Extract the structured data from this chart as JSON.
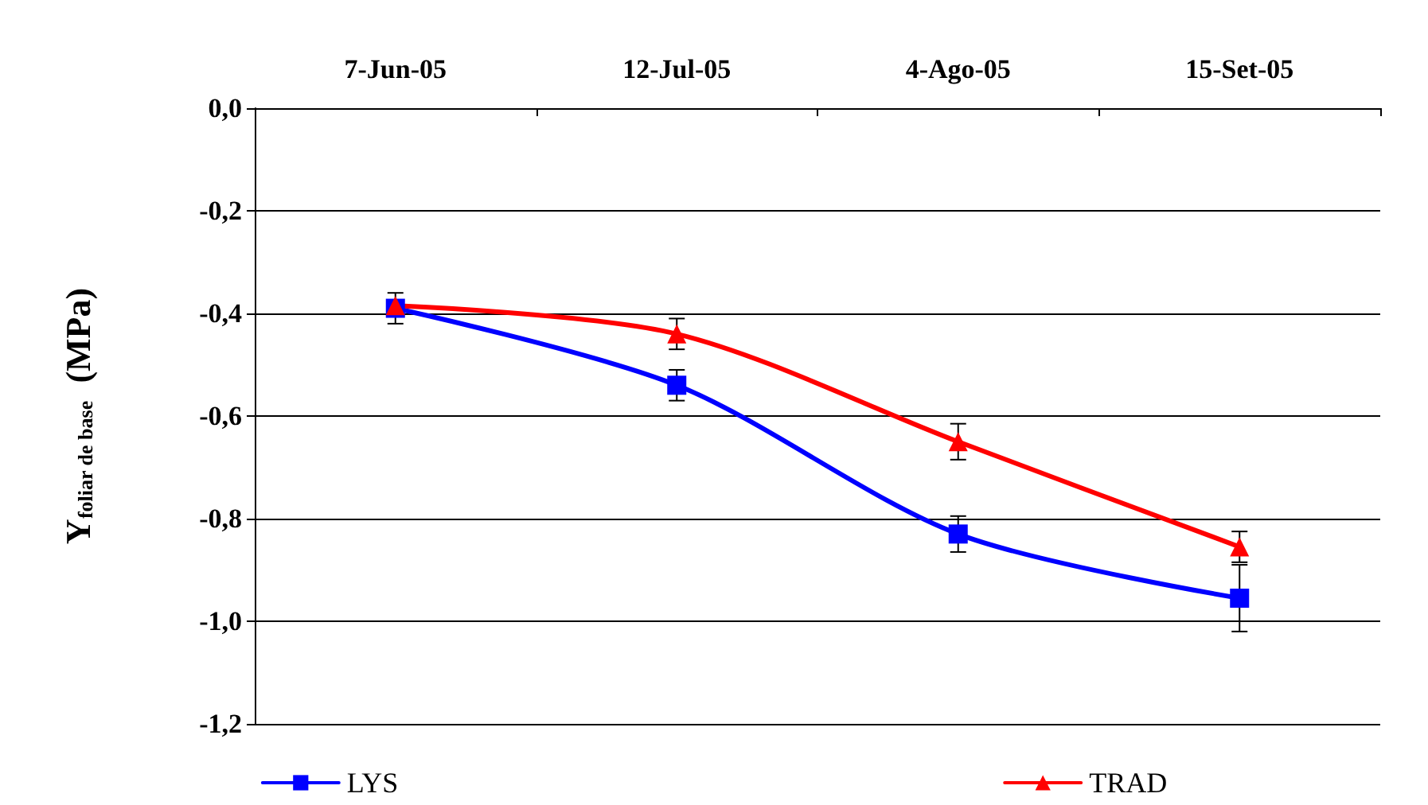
{
  "chart_data": {
    "type": "line",
    "ylabel": "Y$_{foliar de base}$  (MPa)",
    "categories": [
      "7-Jun-05",
      "12-Jul-05",
      "4-Ago-05",
      "15-Set-05"
    ],
    "series": [
      {
        "name": "LYS",
        "color": "#0000ff",
        "marker": "square",
        "values": [
          -0.39,
          -0.54,
          -0.83,
          -0.955
        ],
        "errors": [
          0.03,
          0.03,
          0.035,
          0.065
        ]
      },
      {
        "name": "TRAD",
        "color": "#ff0000",
        "marker": "triangle",
        "values": [
          -0.385,
          -0.44,
          -0.65,
          -0.855
        ],
        "errors": [
          null,
          0.03,
          0.035,
          0.03
        ]
      }
    ],
    "ylim": [
      -1.2,
      0
    ],
    "yticks": [
      {
        "value": -1.2,
        "label": "-1,2"
      },
      {
        "value": -1.0,
        "label": "-1,0"
      },
      {
        "value": -0.8,
        "label": "-0,8"
      },
      {
        "value": -0.6,
        "label": "-0,6"
      },
      {
        "value": -0.4,
        "label": "-0,4"
      },
      {
        "value": -0.2,
        "label": "-0,2"
      },
      {
        "value": 0,
        "label": "0,0"
      }
    ],
    "grid": "y",
    "legend": "bottom",
    "line_style": "solid"
  }
}
